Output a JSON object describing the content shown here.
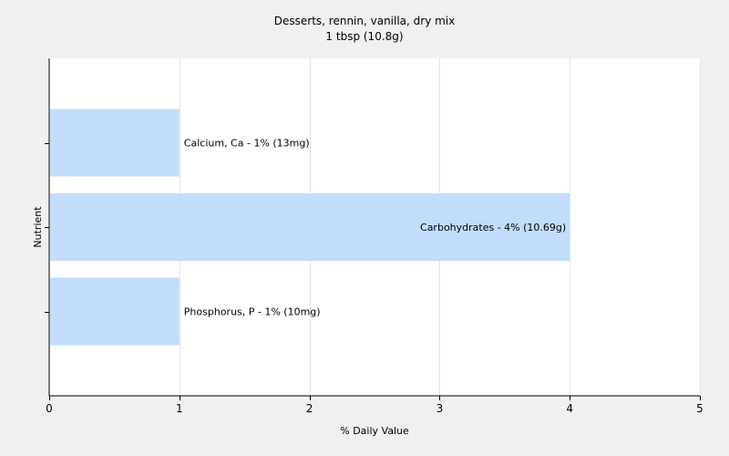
{
  "chart_data": {
    "type": "bar",
    "orientation": "horizontal",
    "title": "Desserts, rennin, vanilla, dry mix",
    "subtitle": "1 tbsp (10.8g)",
    "xlabel": "% Daily Value",
    "ylabel": "Nutrient",
    "xlim": [
      0,
      5
    ],
    "xticks": [
      "0",
      "1",
      "2",
      "3",
      "4",
      "5"
    ],
    "grid": true,
    "legend": "none",
    "bar_color": "#c2dcfc",
    "categories": [
      "Calcium, Ca",
      "Carbohydrates",
      "Phosphorus, P"
    ],
    "values": [
      1,
      4,
      1
    ],
    "labels": [
      "Calcium, Ca - 1% (13mg)",
      "Carbohydrates - 4% (10.69g)",
      "Phosphorus, P - 1% (10mg)"
    ]
  }
}
